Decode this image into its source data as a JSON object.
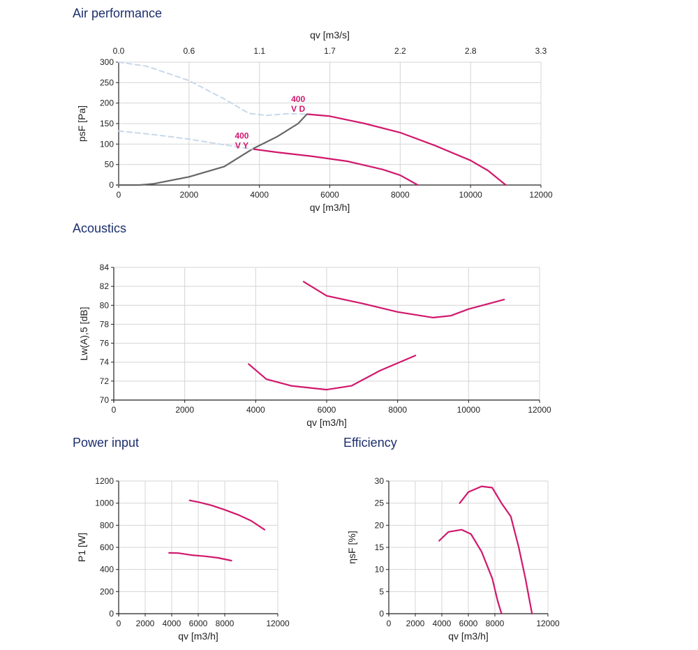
{
  "sections": {
    "air": "Air performance",
    "acoustics": "Acoustics",
    "power": "Power input",
    "efficiency": "Efficiency"
  },
  "colors": {
    "magenta": "#d0186c",
    "gray_line": "#666666",
    "dashed": "#c8d8ea",
    "grid": "#d4d4d4",
    "title": "#1c2f6e"
  },
  "chart_data": [
    {
      "id": "air",
      "type": "line",
      "xlabel": "qv [m3/h]",
      "ylabel": "psF [Pa]",
      "x2label": "qv [m3/s]",
      "xlim": [
        0,
        12000
      ],
      "ylim": [
        0,
        300
      ],
      "xticks": [
        0,
        2000,
        4000,
        6000,
        8000,
        10000,
        12000
      ],
      "yticks": [
        0,
        50,
        100,
        150,
        200,
        250,
        300
      ],
      "x2ticks": [
        "0.0",
        "0.6",
        "1.1",
        "1.7",
        "2.2",
        "2.8",
        "3.3"
      ],
      "grid": true,
      "annotations": [
        {
          "lines": [
            "400",
            "V D"
          ],
          "x": 5100,
          "y": 203
        },
        {
          "lines": [
            "400",
            "V Y"
          ],
          "x": 3500,
          "y": 113
        }
      ],
      "series": [
        {
          "style": "solid",
          "color": "#d0186c",
          "points": [
            [
              5350,
              173
            ],
            [
              6000,
              168
            ],
            [
              7000,
              150
            ],
            [
              8000,
              128
            ],
            [
              9000,
              96
            ],
            [
              10000,
              60
            ],
            [
              10500,
              35
            ],
            [
              11000,
              0
            ]
          ]
        },
        {
          "style": "solid",
          "color": "#d0186c",
          "points": [
            [
              3800,
              88
            ],
            [
              4500,
              80
            ],
            [
              5500,
              70
            ],
            [
              6500,
              58
            ],
            [
              7500,
              38
            ],
            [
              8000,
              24
            ],
            [
              8500,
              0
            ]
          ]
        },
        {
          "style": "solid",
          "color": "#666666",
          "points": [
            [
              0,
              0
            ],
            [
              600,
              0
            ],
            [
              1000,
              3
            ],
            [
              2000,
              20
            ],
            [
              3000,
              45
            ],
            [
              3800,
              88
            ],
            [
              4500,
              118
            ],
            [
              5100,
              150
            ],
            [
              5350,
              173
            ]
          ]
        },
        {
          "style": "dashed",
          "color": "#c8d8ea",
          "points": [
            [
              0,
              300
            ],
            [
              800,
              290
            ],
            [
              2000,
              255
            ],
            [
              3000,
              210
            ],
            [
              3700,
              175
            ],
            [
              4200,
              170
            ],
            [
              4800,
              174
            ],
            [
              5350,
              173
            ]
          ]
        },
        {
          "style": "dashed",
          "color": "#c8d8ea",
          "points": [
            [
              0,
              132
            ],
            [
              1000,
              123
            ],
            [
              2000,
              112
            ],
            [
              3000,
              98
            ],
            [
              3800,
              88
            ]
          ]
        }
      ]
    },
    {
      "id": "acoustics",
      "type": "line",
      "xlabel": "qv [m3/h]",
      "ylabel": "Lw(A),5 [dB]",
      "xlim": [
        0,
        12000
      ],
      "ylim": [
        70,
        84
      ],
      "xticks": [
        0,
        2000,
        4000,
        6000,
        8000,
        10000,
        12000
      ],
      "yticks": [
        70,
        72,
        74,
        76,
        78,
        80,
        82,
        84
      ],
      "grid": true,
      "series": [
        {
          "style": "solid",
          "color": "#d0186c",
          "points": [
            [
              5350,
              82.5
            ],
            [
              6000,
              81
            ],
            [
              7000,
              80.2
            ],
            [
              8000,
              79.3
            ],
            [
              9000,
              78.7
            ],
            [
              9500,
              78.9
            ],
            [
              10000,
              79.6
            ],
            [
              11000,
              80.6
            ]
          ]
        },
        {
          "style": "solid",
          "color": "#d0186c",
          "points": [
            [
              3800,
              73.8
            ],
            [
              4300,
              72.2
            ],
            [
              5000,
              71.5
            ],
            [
              6000,
              71.1
            ],
            [
              6700,
              71.5
            ],
            [
              7500,
              73.1
            ],
            [
              8500,
              74.7
            ]
          ]
        }
      ]
    },
    {
      "id": "power",
      "type": "line",
      "xlabel": "qv [m3/h]",
      "ylabel": "P1 [W]",
      "xlim": [
        0,
        12000
      ],
      "ylim": [
        0,
        1200
      ],
      "xticks": [
        0,
        2000,
        4000,
        6000,
        8000,
        12000
      ],
      "yticks": [
        0,
        200,
        400,
        600,
        800,
        1000,
        1200
      ],
      "grid": true,
      "series": [
        {
          "style": "solid",
          "color": "#d0186c",
          "points": [
            [
              5350,
              1025
            ],
            [
              6000,
              1010
            ],
            [
              7000,
              980
            ],
            [
              8000,
              940
            ],
            [
              9000,
              895
            ],
            [
              10000,
              840
            ],
            [
              11000,
              760
            ]
          ]
        },
        {
          "style": "solid",
          "color": "#d0186c",
          "points": [
            [
              3800,
              550
            ],
            [
              4500,
              548
            ],
            [
              5500,
              530
            ],
            [
              6500,
              520
            ],
            [
              7500,
              505
            ],
            [
              8500,
              480
            ]
          ]
        }
      ]
    },
    {
      "id": "efficiency",
      "type": "line",
      "xlabel": "qv [m3/h]",
      "ylabel": "ηsF [%]",
      "xlim": [
        0,
        12000
      ],
      "ylim": [
        0,
        30
      ],
      "xticks": [
        0,
        2000,
        4000,
        6000,
        8000,
        12000
      ],
      "yticks": [
        0,
        5,
        10,
        15,
        20,
        25,
        30
      ],
      "grid": true,
      "series": [
        {
          "style": "solid",
          "color": "#d0186c",
          "points": [
            [
              5350,
              25
            ],
            [
              6000,
              27.5
            ],
            [
              7000,
              28.8
            ],
            [
              7800,
              28.5
            ],
            [
              8500,
              25
            ],
            [
              9200,
              22
            ],
            [
              9800,
              15
            ],
            [
              10300,
              8
            ],
            [
              10800,
              0
            ]
          ]
        },
        {
          "style": "solid",
          "color": "#d0186c",
          "points": [
            [
              3800,
              16.5
            ],
            [
              4500,
              18.5
            ],
            [
              5500,
              19
            ],
            [
              6200,
              18
            ],
            [
              7000,
              14
            ],
            [
              7800,
              8
            ],
            [
              8200,
              3
            ],
            [
              8500,
              0
            ]
          ]
        }
      ]
    }
  ]
}
